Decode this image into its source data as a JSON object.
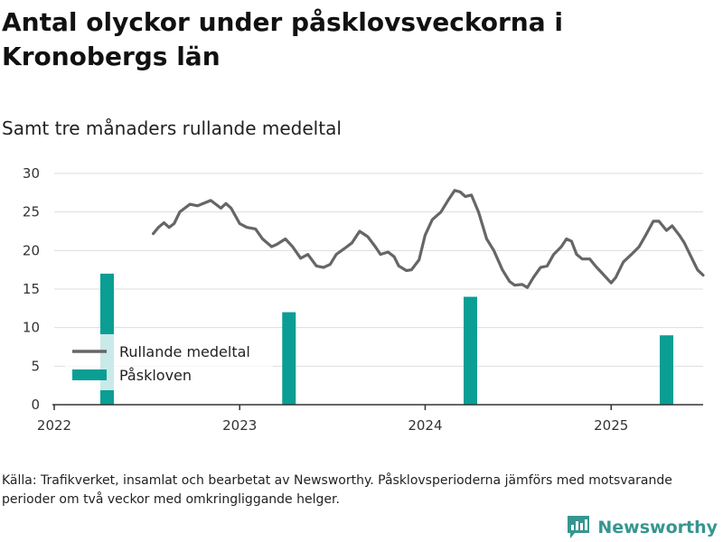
{
  "title": "Antal olyckor under påsklovsveckorna i Kronobergs län",
  "subtitle": "Samt tre månaders rullande medeltal",
  "source": "Källa: Trafikverket, insamlat och bearbetat av Newsworthy. Påsklovsperioderna jämförs med motsvarande perioder om två veckor med omkringliggande helger.",
  "logo": {
    "text": "Newsworthy",
    "icon": "bar-chart-logo-icon",
    "color": "#36968f"
  },
  "chart_data": {
    "type": "bar+line",
    "title": "Antal olyckor under påsklovsveckorna i Kronobergs län",
    "subtitle": "Samt tre månaders rullande medeltal",
    "ylim": [
      0,
      30
    ],
    "yticks": [
      0,
      5,
      10,
      15,
      20,
      25,
      30
    ],
    "xlim": [
      "2022-01-01",
      "2025-07-01"
    ],
    "xticks": [
      {
        "date": "2022-01-01",
        "label": "2022"
      },
      {
        "date": "2023-01-01",
        "label": "2023"
      },
      {
        "date": "2024-01-01",
        "label": "2024"
      },
      {
        "date": "2025-01-01",
        "label": "2025"
      }
    ],
    "grid": true,
    "legend_position": "left-middle",
    "series": [
      {
        "name": "Rullande medeltal",
        "type": "line",
        "color": "#666666",
        "points": [
          [
            "2022-07-15",
            22.2
          ],
          [
            "2022-07-25",
            23.0
          ],
          [
            "2022-08-05",
            23.6
          ],
          [
            "2022-08-15",
            23.0
          ],
          [
            "2022-08-25",
            23.5
          ],
          [
            "2022-09-05",
            25.0
          ],
          [
            "2022-09-15",
            25.5
          ],
          [
            "2022-09-25",
            26.0
          ],
          [
            "2022-10-10",
            25.8
          ],
          [
            "2022-10-25",
            26.2
          ],
          [
            "2022-11-05",
            26.5
          ],
          [
            "2022-11-15",
            26.0
          ],
          [
            "2022-11-25",
            25.5
          ],
          [
            "2022-12-05",
            26.1
          ],
          [
            "2022-12-15",
            25.5
          ],
          [
            "2023-01-01",
            23.5
          ],
          [
            "2023-01-15",
            23.0
          ],
          [
            "2023-02-01",
            22.8
          ],
          [
            "2023-02-15",
            21.5
          ],
          [
            "2023-03-05",
            20.5
          ],
          [
            "2023-03-15",
            20.8
          ],
          [
            "2023-04-01",
            21.5
          ],
          [
            "2023-04-15",
            20.5
          ],
          [
            "2023-05-01",
            19.0
          ],
          [
            "2023-05-15",
            19.5
          ],
          [
            "2023-06-01",
            18.0
          ],
          [
            "2023-06-15",
            17.8
          ],
          [
            "2023-06-28",
            18.2
          ],
          [
            "2023-07-10",
            19.5
          ],
          [
            "2023-07-25",
            20.2
          ],
          [
            "2023-08-10",
            21.0
          ],
          [
            "2023-08-25",
            22.5
          ],
          [
            "2023-09-10",
            21.8
          ],
          [
            "2023-09-25",
            20.5
          ],
          [
            "2023-10-05",
            19.5
          ],
          [
            "2023-10-20",
            19.8
          ],
          [
            "2023-11-01",
            19.2
          ],
          [
            "2023-11-10",
            18.0
          ],
          [
            "2023-11-25",
            17.4
          ],
          [
            "2023-12-05",
            17.5
          ],
          [
            "2023-12-20",
            18.8
          ],
          [
            "2024-01-01",
            22.0
          ],
          [
            "2024-01-15",
            24.0
          ],
          [
            "2024-02-01",
            25.0
          ],
          [
            "2024-02-15",
            26.5
          ],
          [
            "2024-02-28",
            27.8
          ],
          [
            "2024-03-10",
            27.6
          ],
          [
            "2024-03-20",
            27.0
          ],
          [
            "2024-04-01",
            27.2
          ],
          [
            "2024-04-15",
            25.0
          ],
          [
            "2024-05-01",
            21.5
          ],
          [
            "2024-05-15",
            20.0
          ],
          [
            "2024-06-01",
            17.5
          ],
          [
            "2024-06-15",
            16.0
          ],
          [
            "2024-06-25",
            15.5
          ],
          [
            "2024-07-10",
            15.6
          ],
          [
            "2024-07-20",
            15.2
          ],
          [
            "2024-08-01",
            16.5
          ],
          [
            "2024-08-15",
            17.8
          ],
          [
            "2024-08-28",
            18.0
          ],
          [
            "2024-09-10",
            19.5
          ],
          [
            "2024-09-25",
            20.5
          ],
          [
            "2024-10-05",
            21.5
          ],
          [
            "2024-10-15",
            21.2
          ],
          [
            "2024-10-25",
            19.5
          ],
          [
            "2024-11-05",
            18.9
          ],
          [
            "2024-11-20",
            18.9
          ],
          [
            "2024-12-01",
            18.0
          ],
          [
            "2024-12-15",
            17.0
          ],
          [
            "2025-01-01",
            15.8
          ],
          [
            "2025-01-10",
            16.5
          ],
          [
            "2025-01-25",
            18.5
          ],
          [
            "2025-02-10",
            19.5
          ],
          [
            "2025-02-25",
            20.5
          ],
          [
            "2025-03-10",
            22.0
          ],
          [
            "2025-03-25",
            23.8
          ],
          [
            "2025-04-05",
            23.8
          ],
          [
            "2025-04-20",
            22.6
          ],
          [
            "2025-05-01",
            23.2
          ],
          [
            "2025-05-15",
            22.0
          ],
          [
            "2025-05-25",
            21.0
          ],
          [
            "2025-06-05",
            19.5
          ],
          [
            "2025-06-20",
            17.5
          ],
          [
            "2025-07-01",
            16.8
          ]
        ]
      },
      {
        "name": "Påskloven",
        "type": "bar",
        "color": "#0a9e95",
        "points": [
          [
            "2022-04-15",
            17
          ],
          [
            "2023-04-08",
            12
          ],
          [
            "2024-03-30",
            14
          ],
          [
            "2025-04-20",
            9
          ]
        ]
      }
    ]
  }
}
